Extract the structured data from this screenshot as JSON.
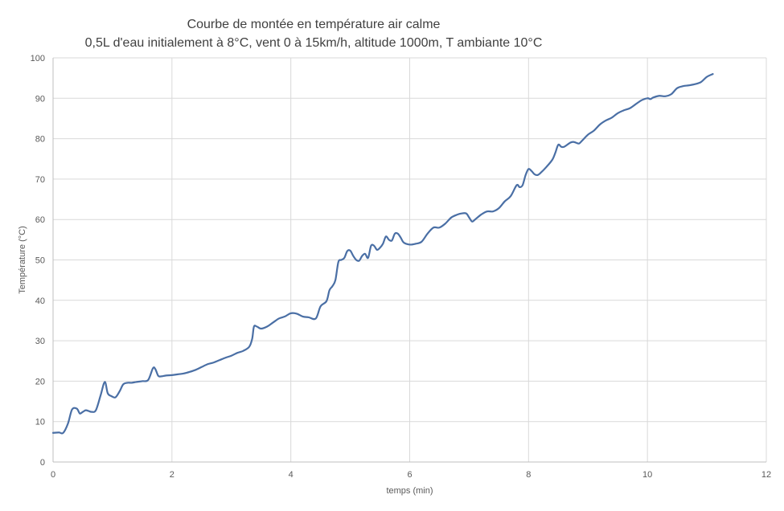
{
  "chart_data": {
    "type": "line",
    "title": "Courbe de montée en température air calme",
    "subtitle": "0,5L d'eau initialement à 8°C, vent 0 à 15km/h, altitude 1000m, T ambiante 10°C",
    "xlabel": "temps (min)",
    "ylabel": "Température (°C)",
    "xlim": [
      0,
      12
    ],
    "ylim": [
      0,
      100
    ],
    "x_ticks": [
      "0",
      "2",
      "4",
      "6",
      "8",
      "10",
      "12"
    ],
    "y_ticks": [
      "0",
      "10",
      "20",
      "30",
      "40",
      "50",
      "60",
      "70",
      "80",
      "90",
      "100"
    ],
    "grid": true,
    "legend": "none",
    "colors": {
      "line": "#4a6fa5",
      "grid": "#d9d9d9",
      "axis": "#bfbfbf",
      "text": "#595959"
    },
    "series": [
      {
        "x": [
          0,
          0.1,
          0.17,
          0.25,
          0.32,
          0.4,
          0.45,
          0.5,
          0.55,
          0.6,
          0.65,
          0.72,
          0.8,
          0.87,
          0.92,
          0.98,
          1.05,
          1.12,
          1.18,
          1.25,
          1.32,
          1.4,
          1.5,
          1.6,
          1.68,
          1.72,
          1.77,
          1.82,
          1.9,
          2.0,
          2.1,
          2.2,
          2.3,
          2.4,
          2.5,
          2.6,
          2.7,
          2.8,
          2.9,
          3.0,
          3.1,
          3.2,
          3.3,
          3.35,
          3.38,
          3.43,
          3.5,
          3.6,
          3.7,
          3.8,
          3.9,
          4.0,
          4.1,
          4.2,
          4.3,
          4.42,
          4.5,
          4.6,
          4.65,
          4.7,
          4.75,
          4.8,
          4.85,
          4.9,
          4.95,
          5.0,
          5.05,
          5.1,
          5.15,
          5.2,
          5.25,
          5.3,
          5.35,
          5.4,
          5.45,
          5.5,
          5.55,
          5.6,
          5.65,
          5.7,
          5.75,
          5.8,
          5.85,
          5.9,
          6.0,
          6.1,
          6.2,
          6.3,
          6.4,
          6.5,
          6.6,
          6.7,
          6.8,
          6.87,
          6.95,
          7.0,
          7.05,
          7.1,
          7.2,
          7.3,
          7.4,
          7.5,
          7.6,
          7.7,
          7.8,
          7.85,
          7.9,
          7.95,
          8.0,
          8.05,
          8.1,
          8.15,
          8.2,
          8.3,
          8.4,
          8.45,
          8.5,
          8.55,
          8.6,
          8.7,
          8.75,
          8.8,
          8.85,
          8.9,
          9.0,
          9.1,
          9.2,
          9.3,
          9.4,
          9.5,
          9.6,
          9.7,
          9.8,
          9.9,
          10.0,
          10.05,
          10.1,
          10.2,
          10.3,
          10.4,
          10.5,
          10.6,
          10.7,
          10.8,
          10.9,
          11.0,
          11.1
        ],
        "values": [
          7.2,
          7.3,
          7.2,
          9.5,
          13.0,
          13.2,
          12.0,
          12.4,
          12.8,
          12.6,
          12.4,
          12.8,
          16.5,
          19.8,
          17.0,
          16.3,
          16.0,
          17.5,
          19.2,
          19.6,
          19.6,
          19.8,
          20.0,
          20.3,
          23.2,
          23.0,
          21.3,
          21.2,
          21.4,
          21.5,
          21.7,
          21.9,
          22.3,
          22.8,
          23.5,
          24.2,
          24.6,
          25.2,
          25.8,
          26.3,
          27.0,
          27.5,
          28.5,
          30.5,
          33.5,
          33.5,
          33.0,
          33.5,
          34.5,
          35.5,
          36.0,
          36.8,
          36.7,
          36.0,
          35.8,
          35.5,
          38.5,
          39.8,
          42.5,
          43.5,
          45.0,
          49.5,
          50.0,
          50.5,
          52.2,
          52.3,
          51.0,
          50.0,
          49.8,
          51.0,
          51.5,
          50.5,
          53.5,
          53.5,
          52.5,
          53.0,
          54.0,
          55.8,
          55.0,
          54.8,
          56.5,
          56.5,
          55.5,
          54.3,
          53.8,
          54.0,
          54.5,
          56.5,
          58.0,
          58.0,
          59.0,
          60.5,
          61.2,
          61.5,
          61.5,
          60.5,
          59.5,
          60.0,
          61.2,
          62.0,
          62.0,
          62.8,
          64.5,
          65.8,
          68.5,
          68.0,
          68.5,
          71.0,
          72.5,
          72.0,
          71.2,
          71.0,
          71.5,
          73.0,
          74.8,
          76.5,
          78.5,
          78.0,
          78.0,
          79.0,
          79.2,
          79.0,
          78.8,
          79.5,
          81.0,
          82.0,
          83.5,
          84.5,
          85.2,
          86.3,
          87.0,
          87.5,
          88.5,
          89.5,
          90.0,
          89.8,
          90.2,
          90.6,
          90.5,
          91.0,
          92.5,
          93.0,
          93.2,
          93.5,
          94.0,
          95.3,
          96.0
        ]
      }
    ]
  }
}
